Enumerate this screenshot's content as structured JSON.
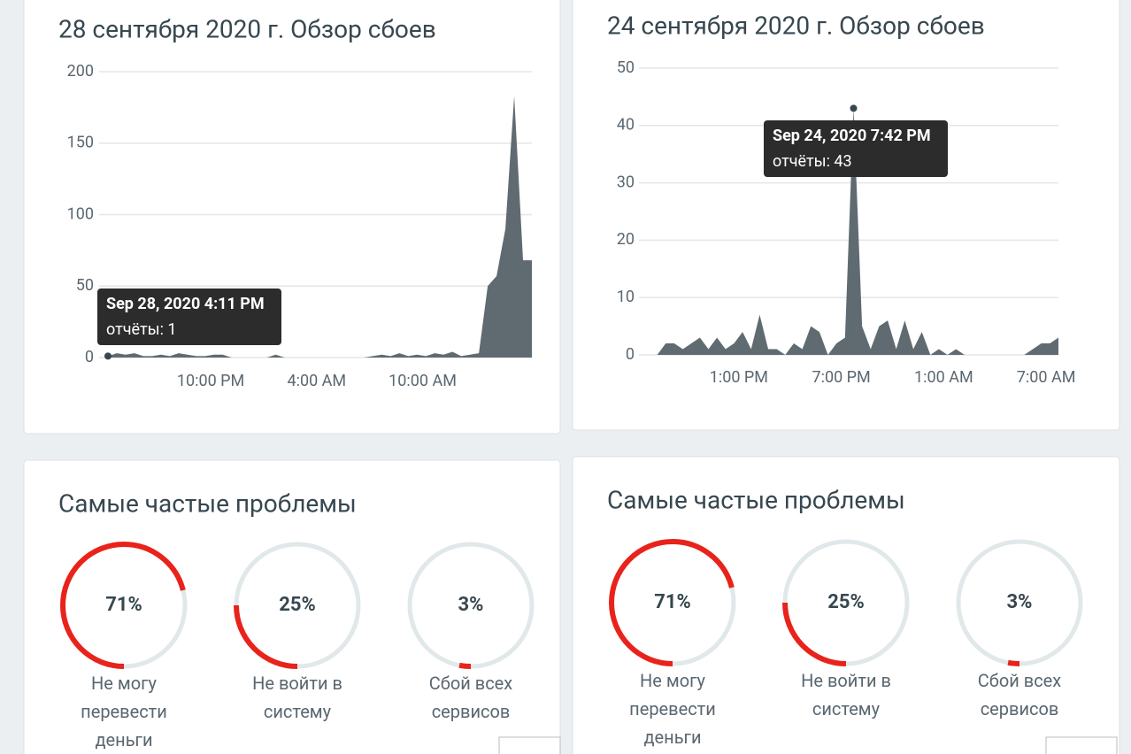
{
  "chart_data": [
    {
      "type": "area",
      "title": "28 сентября 2020 г. Обзор сбоев",
      "color": "#5f6b71",
      "values": [
        1,
        3,
        2,
        3,
        1,
        1,
        2,
        1,
        3,
        2,
        1,
        1,
        2,
        2,
        0,
        0,
        0,
        0,
        0,
        2,
        0,
        0,
        0,
        0,
        0,
        0,
        0,
        0,
        0,
        0,
        1,
        2,
        1,
        3,
        1,
        2,
        1,
        3,
        2,
        4,
        1,
        2,
        3,
        50,
        57,
        90,
        183,
        68,
        68
      ],
      "xlim": [
        0,
        48
      ],
      "xticks": [
        {
          "value": 11.63,
          "label": "10:00 PM"
        },
        {
          "value": 23.63,
          "label": "4:00 AM"
        },
        {
          "value": 35.63,
          "label": "10:00 AM"
        }
      ],
      "ylim": [
        0,
        200
      ],
      "yticks": [
        0,
        50,
        100,
        150,
        200
      ],
      "grid": true,
      "tooltip": {
        "title": "Sep 28, 2020 4:11 PM",
        "text": "отчёты: 1"
      }
    },
    {
      "type": "area",
      "title": "24 сентября 2020 г. Обзор сбоев",
      "color": "#5f6b71",
      "values": [
        0,
        0,
        2,
        2,
        1,
        2,
        3,
        1,
        3,
        1,
        2,
        4,
        1,
        7,
        1,
        1,
        0,
        2,
        1,
        5,
        4,
        0,
        2,
        3,
        43,
        5,
        1,
        5,
        6,
        1,
        6,
        1,
        4,
        0,
        1,
        0,
        1,
        0,
        0,
        0,
        0,
        0,
        0,
        0,
        0,
        1,
        2,
        2,
        3
      ],
      "xlim": [
        0,
        48
      ],
      "xticks": [
        {
          "value": 10.56,
          "label": "1:00 PM"
        },
        {
          "value": 22.56,
          "label": "7:00 PM"
        },
        {
          "value": 34.56,
          "label": "1:00 AM"
        },
        {
          "value": 46.56,
          "label": "7:00 AM"
        }
      ],
      "ylim": [
        0,
        50
      ],
      "yticks": [
        0,
        10,
        20,
        30,
        40,
        50
      ],
      "grid": true,
      "tooltip": {
        "title": "Sep 24, 2020 7:42 PM",
        "text": "отчёты: 43"
      }
    },
    {
      "type": "donut",
      "title": "Самые частые проблемы",
      "color": "#e8231b",
      "track_color": "#e1e8ea",
      "categories": [
        "Не могу перевести деньги",
        "Не войти в систему",
        "Сбой всех сервисов"
      ],
      "values": [
        71,
        25,
        3
      ],
      "value_labels": [
        "71%",
        "25%",
        "3%"
      ]
    },
    {
      "type": "donut",
      "title": "Самые частые проблемы",
      "color": "#e8231b",
      "track_color": "#e1e8ea",
      "categories": [
        "Не могу перевести деньги",
        "Не войти в систему",
        "Сбой всех сервисов"
      ],
      "values": [
        71,
        25,
        3
      ],
      "value_labels": [
        "71%",
        "25%",
        "3%"
      ]
    }
  ]
}
